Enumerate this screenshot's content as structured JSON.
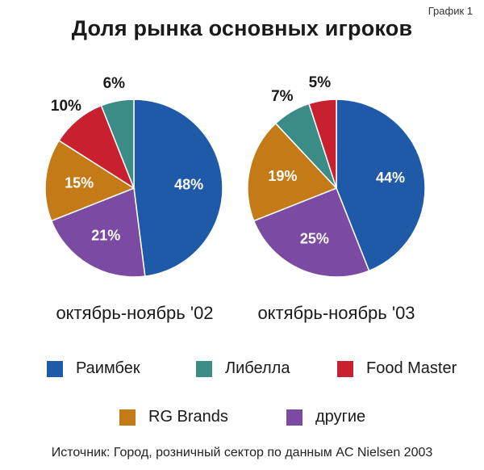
{
  "chart_label": "График 1",
  "chart_data": {
    "type": "pie",
    "title": "Доля рынка основных игроков",
    "categories": [
      "Раимбек",
      "Либелла",
      "Food Master",
      "RG Brands",
      "другие"
    ],
    "colors": {
      "Раимбек": "#1f5aa8",
      "Либелла": "#3b8c86",
      "Food Master": "#c8202e",
      "RG Brands": "#c47a16",
      "другие": "#7b4aa3"
    },
    "pies": [
      {
        "label": "октябрь-ноябрь '02",
        "slices": [
          {
            "name": "Раимбек",
            "value": 48,
            "label": "48%"
          },
          {
            "name": "другие",
            "value": 21,
            "label": "21%"
          },
          {
            "name": "RG Brands",
            "value": 15,
            "label": "15%"
          },
          {
            "name": "Food Master",
            "value": 10,
            "label": "10%"
          },
          {
            "name": "Либелла",
            "value": 6,
            "label": "6%"
          }
        ]
      },
      {
        "label": "октябрь-ноябрь '03",
        "slices": [
          {
            "name": "Раимбек",
            "value": 44,
            "label": "44%"
          },
          {
            "name": "другие",
            "value": 25,
            "label": "25%"
          },
          {
            "name": "RG Brands",
            "value": 19,
            "label": "19%"
          },
          {
            "name": "Либелла",
            "value": 7,
            "label": "7%"
          },
          {
            "name": "Food Master",
            "value": 5,
            "label": "5%"
          }
        ]
      }
    ],
    "legend": [
      "Раимбек",
      "Либелла",
      "Food Master",
      "RG Brands",
      "другие"
    ]
  },
  "source": "Источник: Город, розничный сектор по данным AC Nielsen 2003"
}
